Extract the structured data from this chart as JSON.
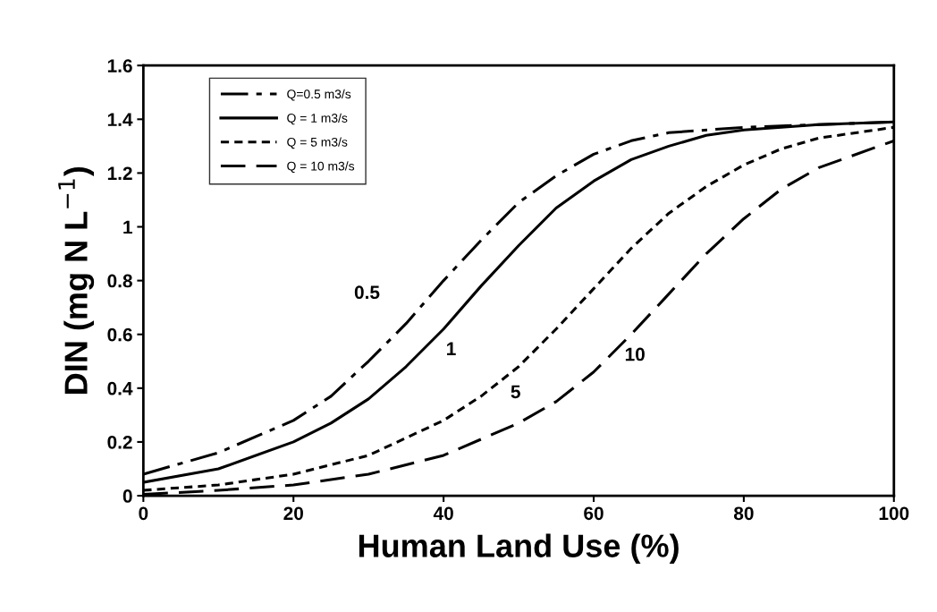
{
  "chart_data": {
    "type": "line",
    "xlabel": "Human Land Use (%)",
    "ylabel": "DIN (mg N L$^{−1}$)",
    "xlim": [
      0,
      100
    ],
    "xticks": [
      0,
      20,
      40,
      60,
      80,
      100
    ],
    "ylim": [
      0,
      1.6
    ],
    "yticks": [
      0,
      0.2,
      0.4,
      0.6,
      0.8,
      1,
      1.2,
      1.4,
      1.6
    ],
    "grid": false,
    "legend": "top left",
    "marker": "none",
    "series": [
      {
        "name": "Q=0.5 m3/s",
        "color": "#000000",
        "line_style": "dashdot",
        "x": [
          0,
          10,
          20,
          25,
          30,
          35,
          40,
          45,
          50,
          55,
          60,
          65,
          70,
          80,
          90,
          100
        ],
        "values": [
          0.08,
          0.16,
          0.28,
          0.37,
          0.5,
          0.64,
          0.8,
          0.95,
          1.09,
          1.19,
          1.27,
          1.32,
          1.35,
          1.37,
          1.38,
          1.39
        ]
      },
      {
        "name": "Q = 1 m3/s",
        "color": "#000000",
        "line_style": "solid",
        "x": [
          0,
          10,
          20,
          25,
          30,
          35,
          40,
          45,
          50,
          55,
          60,
          65,
          70,
          75,
          80,
          90,
          100
        ],
        "values": [
          0.05,
          0.1,
          0.2,
          0.27,
          0.36,
          0.48,
          0.62,
          0.78,
          0.93,
          1.07,
          1.17,
          1.25,
          1.3,
          1.34,
          1.36,
          1.38,
          1.39
        ]
      },
      {
        "name": "Q = 5 m3/s",
        "color": "#000000",
        "line_style": "dotted",
        "x": [
          0,
          10,
          20,
          30,
          40,
          45,
          50,
          55,
          60,
          65,
          70,
          75,
          80,
          85,
          90,
          100
        ],
        "values": [
          0.02,
          0.04,
          0.08,
          0.15,
          0.28,
          0.37,
          0.48,
          0.62,
          0.77,
          0.92,
          1.05,
          1.15,
          1.23,
          1.29,
          1.33,
          1.37
        ]
      },
      {
        "name": "Q = 10 m3/s",
        "color": "#000000",
        "line_style": "dashed",
        "x": [
          0,
          10,
          20,
          30,
          40,
          50,
          55,
          60,
          65,
          70,
          75,
          80,
          85,
          90,
          100
        ],
        "values": [
          0.005,
          0.02,
          0.04,
          0.08,
          0.15,
          0.27,
          0.35,
          0.46,
          0.6,
          0.75,
          0.9,
          1.03,
          1.14,
          1.22,
          1.32
        ]
      }
    ],
    "annotations": [
      "0.5",
      "1",
      "5",
      "10"
    ]
  }
}
